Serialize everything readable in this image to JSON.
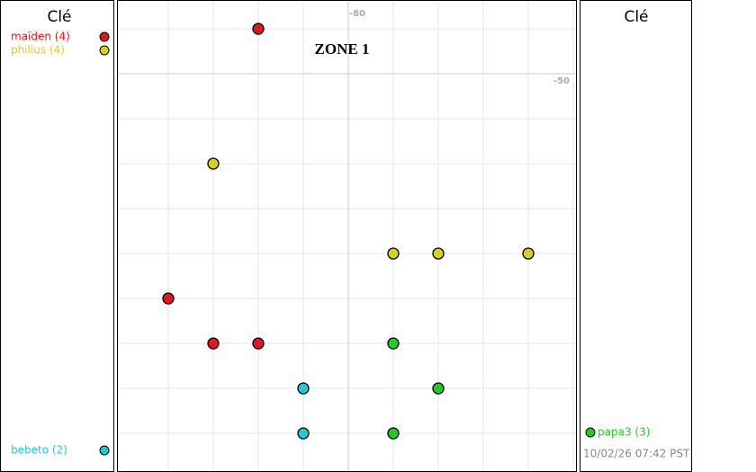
{
  "chart_data": {
    "type": "scatter",
    "title": "ZONE 1",
    "legend_title": "Clé",
    "xlim": [
      -85.12,
      -74.94
    ],
    "ylim": [
      -58.58,
      -48.4
    ],
    "xticks": [
      -80
    ],
    "yticks": [
      -50
    ],
    "xgrid": [
      -84,
      -83,
      -82,
      -81,
      -79,
      -78,
      -77,
      -76,
      -75
    ],
    "ygrid": [
      -49,
      -51,
      -52,
      -53,
      -54,
      -55,
      -56,
      -57,
      -58
    ],
    "timestamp": "10/02/26 07:42 PST",
    "series": [
      {
        "name": "maïden (4)",
        "color": "#e8141b",
        "legend": "left-top",
        "x": [
          -82,
          -84,
          -83,
          -82
        ],
        "values": [
          -49,
          -55,
          -56,
          -56
        ]
      },
      {
        "name": "philius (4)",
        "color": "#d8d01a",
        "legend": "left-top",
        "x": [
          -83,
          -79,
          -78,
          -76
        ],
        "values": [
          -52,
          -54,
          -54,
          -54
        ]
      },
      {
        "name": "bebeto (2)",
        "color": "#22c8d8",
        "legend": "left-bottom",
        "x": [
          -81,
          -81
        ],
        "values": [
          -57,
          -58
        ]
      },
      {
        "name": "papa3 (3)",
        "color": "#22cc22",
        "legend": "right-bottom",
        "x": [
          -79,
          -78,
          -79
        ],
        "values": [
          -56,
          -57,
          -58
        ]
      }
    ]
  }
}
